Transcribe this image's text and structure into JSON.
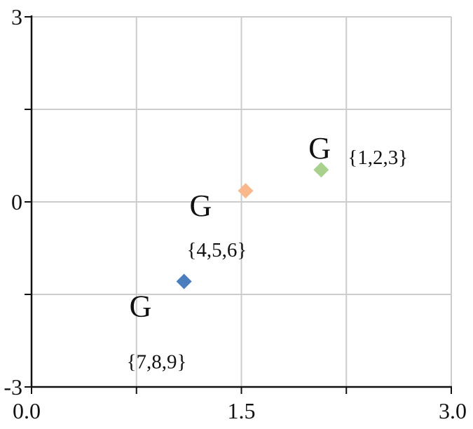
{
  "chart_data": {
    "type": "scatter",
    "title": "",
    "xlabel": "",
    "ylabel": "",
    "xlim": [
      0.0,
      3.0
    ],
    "ylim": [
      -3,
      3
    ],
    "grid": true,
    "x_ticks": [
      0.0,
      0.75,
      1.5,
      2.25,
      3.0
    ],
    "y_ticks": [
      -3,
      -1.5,
      0,
      1.5,
      3
    ],
    "x_tick_labels": [
      "0.0",
      "",
      "1.5",
      "",
      "3.0"
    ],
    "y_tick_labels": [
      "-3",
      "",
      "0",
      "",
      "3"
    ],
    "points": [
      {
        "label": "G",
        "subscript": "{1,2,3}",
        "x": 2.07,
        "y": 0.52,
        "color": "#a9d18e"
      },
      {
        "label": "G",
        "subscript": "{4,5,6}",
        "x": 1.53,
        "y": 0.18,
        "color": "#f8b88b"
      },
      {
        "label": "G",
        "subscript": "{7,8,9}",
        "x": 1.09,
        "y": -1.29,
        "color": "#4a7ebf"
      }
    ],
    "colors": {
      "axis": "#111111",
      "grid": "#cccccc"
    }
  }
}
